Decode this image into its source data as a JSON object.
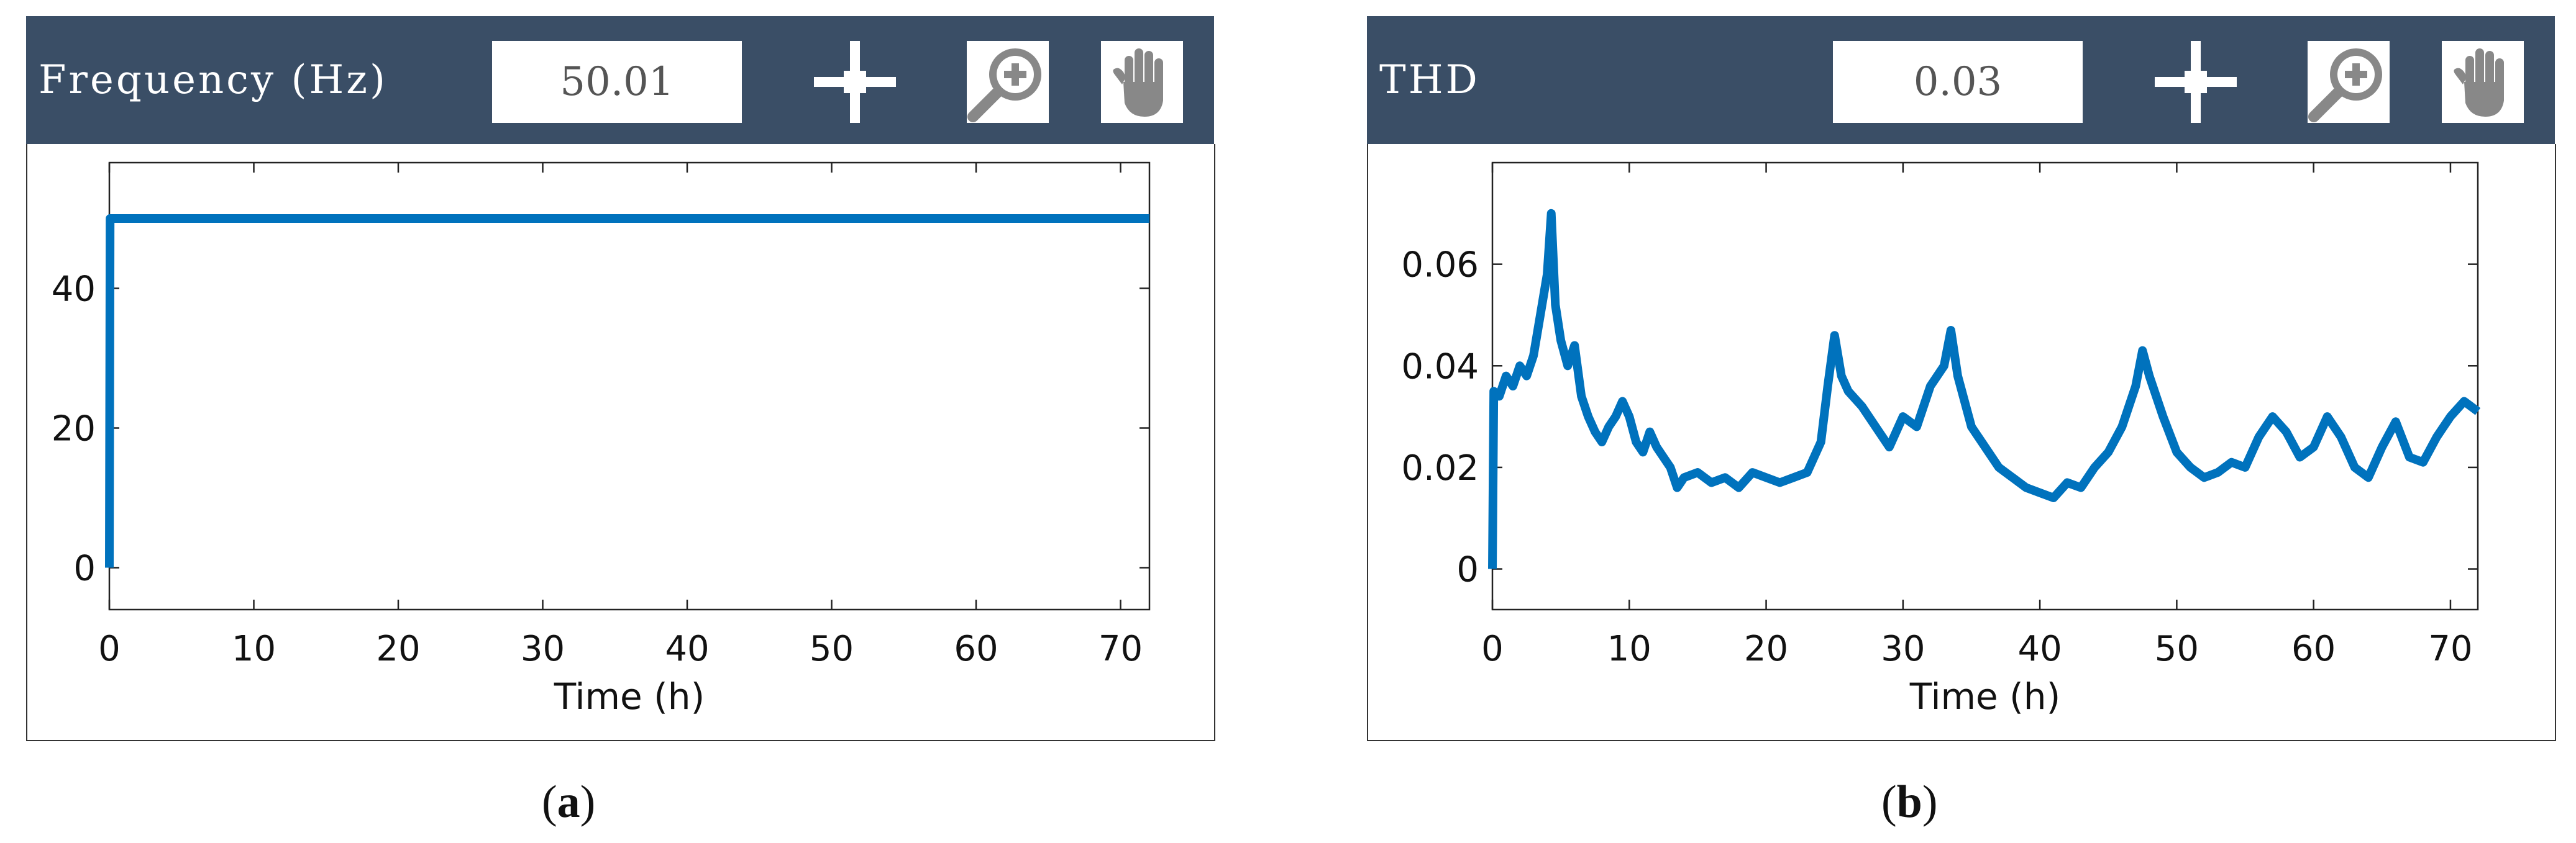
{
  "panels": [
    {
      "id": "a",
      "title": "Frequency (Hz)",
      "readout": "50.01",
      "caption_letter": "a",
      "icons": [
        "crosshair-icon",
        "zoom-in-icon",
        "pan-hand-icon"
      ]
    },
    {
      "id": "b",
      "title": "THD",
      "readout": "0.03",
      "caption_letter": "b",
      "icons": [
        "crosshair-icon",
        "zoom-in-icon",
        "pan-hand-icon"
      ]
    }
  ],
  "colors": {
    "header": "#3a4e66",
    "series": "#0072bd"
  },
  "chart_data": [
    {
      "type": "line",
      "title": "",
      "xlabel": "Time (h)",
      "ylabel": "",
      "xlim": [
        0,
        72
      ],
      "ylim": [
        -6,
        58
      ],
      "xticks": [
        0,
        10,
        20,
        30,
        40,
        50,
        60,
        70
      ],
      "yticks": [
        0,
        20,
        40
      ],
      "grid": false,
      "series": [
        {
          "x": [
            0,
            0.05,
            72
          ],
          "y": [
            0,
            50,
            50
          ]
        }
      ]
    },
    {
      "type": "line",
      "title": "",
      "xlabel": "Time (h)",
      "ylabel": "",
      "xlim": [
        0,
        72
      ],
      "ylim": [
        -0.008,
        0.08
      ],
      "xticks": [
        0,
        10,
        20,
        30,
        40,
        50,
        60,
        70
      ],
      "yticks": [
        0,
        0.02,
        0.04,
        0.06
      ],
      "ytick_labels": [
        "0",
        "0.02",
        "0.04",
        "0.06"
      ],
      "grid": false,
      "series": [
        {
          "x": [
            0,
            0.1,
            0.5,
            1,
            1.5,
            2,
            2.5,
            3,
            3.5,
            4,
            4.3,
            4.6,
            5,
            5.5,
            6,
            6.5,
            7,
            7.5,
            8,
            8.5,
            9,
            9.5,
            10,
            10.5,
            11,
            11.5,
            12,
            12.5,
            13,
            13.5,
            14,
            15,
            16,
            17,
            18,
            19,
            20,
            21,
            22,
            23,
            24,
            24.5,
            25,
            25.5,
            26,
            27,
            28,
            29,
            30,
            31,
            32,
            33,
            33.5,
            34,
            35,
            36,
            37,
            38,
            39,
            40,
            41,
            42,
            43,
            44,
            45,
            46,
            47,
            47.5,
            48,
            49,
            50,
            51,
            52,
            53,
            54,
            55,
            56,
            57,
            58,
            59,
            60,
            61,
            62,
            63,
            64,
            65,
            66,
            67,
            68,
            69,
            70,
            71,
            72
          ],
          "y": [
            0,
            0.035,
            0.034,
            0.038,
            0.036,
            0.04,
            0.038,
            0.042,
            0.05,
            0.058,
            0.07,
            0.052,
            0.045,
            0.04,
            0.044,
            0.034,
            0.03,
            0.027,
            0.025,
            0.028,
            0.03,
            0.033,
            0.03,
            0.025,
            0.023,
            0.027,
            0.024,
            0.022,
            0.02,
            0.016,
            0.018,
            0.019,
            0.017,
            0.018,
            0.016,
            0.019,
            0.018,
            0.017,
            0.018,
            0.019,
            0.025,
            0.036,
            0.046,
            0.038,
            0.035,
            0.032,
            0.028,
            0.024,
            0.03,
            0.028,
            0.036,
            0.04,
            0.047,
            0.038,
            0.028,
            0.024,
            0.02,
            0.018,
            0.016,
            0.015,
            0.014,
            0.017,
            0.016,
            0.02,
            0.023,
            0.028,
            0.036,
            0.043,
            0.038,
            0.03,
            0.023,
            0.02,
            0.018,
            0.019,
            0.021,
            0.02,
            0.026,
            0.03,
            0.027,
            0.022,
            0.024,
            0.03,
            0.026,
            0.02,
            0.018,
            0.024,
            0.029,
            0.022,
            0.021,
            0.026,
            0.03,
            0.033,
            0.031
          ]
        }
      ]
    }
  ]
}
